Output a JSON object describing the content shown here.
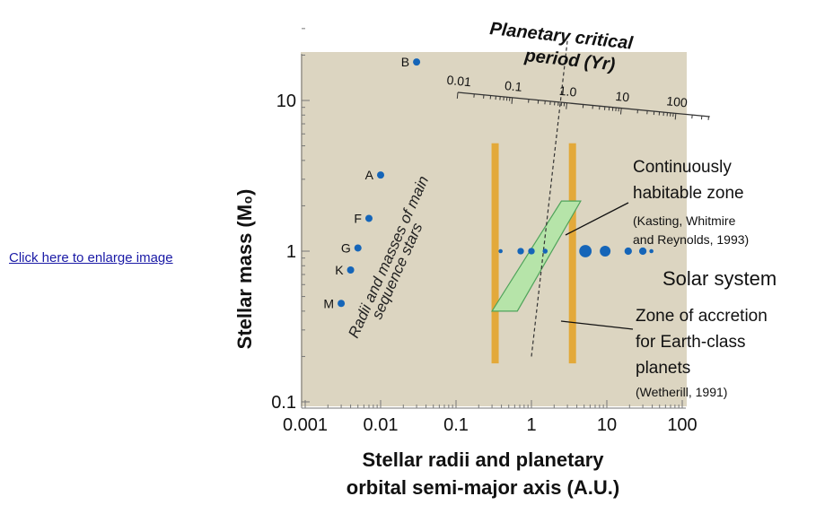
{
  "link": {
    "label": "Click here to enlarge image"
  },
  "chart_data": {
    "type": "scatter",
    "xscale": "log",
    "yscale": "log",
    "xlim": [
      0.001,
      100
    ],
    "ylim": [
      0.1,
      30
    ],
    "x_tick_labels": [
      "0.001",
      "0.01",
      "0.1",
      "1",
      "10",
      "100"
    ],
    "y_tick_labels": [
      "0.1",
      "1",
      "10"
    ],
    "xlabel_lines": [
      "Stellar radii and planetary",
      "orbital semi-major axis (A.U.)"
    ],
    "ylabel": "Stellar mass (M₀)",
    "top_axis": {
      "title_lines": [
        "Planetary critical",
        "period (Yr)"
      ],
      "tick_labels": [
        "0.01",
        "0.1",
        "1.0",
        "10",
        "100"
      ]
    },
    "main_sequence_stars": {
      "label_lines": [
        "Radii and masses of main",
        "sequence stars"
      ],
      "points": [
        {
          "name": "B",
          "x": 0.03,
          "y": 18
        },
        {
          "name": "A",
          "x": 0.01,
          "y": 3.2
        },
        {
          "name": "F",
          "x": 0.007,
          "y": 1.65
        },
        {
          "name": "G",
          "x": 0.005,
          "y": 1.05
        },
        {
          "name": "K",
          "x": 0.004,
          "y": 0.75
        },
        {
          "name": "M",
          "x": 0.003,
          "y": 0.45
        }
      ]
    },
    "solar_system": {
      "label": "Solar system",
      "y": 1,
      "planets": [
        {
          "x": 0.39,
          "size": 1
        },
        {
          "x": 0.72,
          "size": 1.6
        },
        {
          "x": 1.0,
          "size": 1.6
        },
        {
          "x": 1.52,
          "size": 1.2
        },
        {
          "x": 5.2,
          "size": 3
        },
        {
          "x": 9.5,
          "size": 2.6
        },
        {
          "x": 19.2,
          "size": 1.8
        },
        {
          "x": 30,
          "size": 1.8
        },
        {
          "x": 39,
          "size": 1
        }
      ]
    },
    "habitable_zone": {
      "label_lines": [
        "Continuously",
        "habitable zone"
      ],
      "citation_lines": [
        "(Kasting, Whitmire",
        "and Reynolds, 1993)"
      ],
      "polygon": [
        [
          0.3,
          0.4
        ],
        [
          0.65,
          0.4
        ],
        [
          4.5,
          2.15
        ],
        [
          2.5,
          2.15
        ]
      ]
    },
    "accretion_zone": {
      "label_lines": [
        "Zone of accretion",
        "for Earth-class",
        "planets"
      ],
      "citation": "(Wetherill, 1991)",
      "bands_x": [
        0.33,
        3.5
      ],
      "y_range": [
        0.18,
        5.2
      ]
    },
    "critical_period_line": {
      "points": [
        [
          1.0,
          0.2
        ],
        [
          3.0,
          25
        ]
      ]
    },
    "colors": {
      "plot_bg": "#dcd5c1",
      "star_point": "#1565b8",
      "planet_point": "#1565b8",
      "habitable_fill": "#b6e4a9",
      "habitable_stroke": "#4fa35a",
      "accretion_band": "#e3a93a"
    }
  }
}
